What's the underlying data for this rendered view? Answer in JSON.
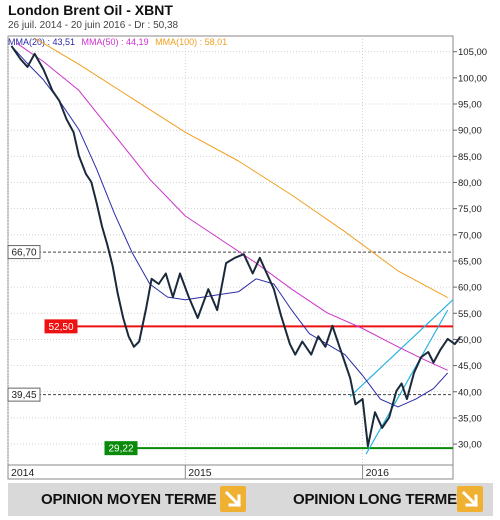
{
  "header": {
    "title": "London Brent Oil - XBNT",
    "subtitle": "26 juil. 2014 - 20 juin 2016 - Dr : 50,38"
  },
  "legend": [
    {
      "label": "MMA(20) : 43,51",
      "color": "#2b2ba8"
    },
    {
      "label": "MMA(50) : 44,19",
      "color": "#cc33cc"
    },
    {
      "label": "MMA(100) : 58,01",
      "color": "#f0a020"
    }
  ],
  "footer": {
    "medium_term": "OPINION MOYEN TERME",
    "long_term": "OPINION LONG TERME",
    "arrow_color": "#f0b133"
  },
  "chart_data": {
    "type": "line",
    "title": "London Brent Oil - XBNT",
    "x_range": [
      2014.0,
      2016.51
    ],
    "ylim": [
      26,
      108
    ],
    "yticks": [
      30,
      35,
      40,
      45,
      50,
      55,
      60,
      65,
      70,
      75,
      80,
      85,
      90,
      95,
      100,
      105
    ],
    "ytick_labels": [
      "30,00",
      "35,00",
      "40,00",
      "45,00",
      "50,00",
      "55,00",
      "60,00",
      "65,00",
      "70,00",
      "75,00",
      "80,00",
      "85,00",
      "90,00",
      "95,00",
      "100,00",
      "105,00"
    ],
    "xticks": [
      {
        "x": 2014.0,
        "label": "2014"
      },
      {
        "x": 2015.0,
        "label": "2015"
      },
      {
        "x": 2016.0,
        "label": "2016"
      }
    ],
    "grid": "dotted",
    "series": [
      {
        "name": "",
        "color": "#1b2a3a",
        "points": [
          [
            2014.02,
            106.1
          ],
          [
            2014.07,
            103.6
          ],
          [
            2014.11,
            102.1
          ],
          [
            2014.15,
            104.6
          ],
          [
            2014.2,
            101.6
          ],
          [
            2014.25,
            97.6
          ],
          [
            2014.29,
            95.6
          ],
          [
            2014.33,
            92.1
          ],
          [
            2014.37,
            89.6
          ],
          [
            2014.4,
            85.1
          ],
          [
            2014.44,
            81.6
          ],
          [
            2014.47,
            80.1
          ],
          [
            2014.5,
            76.1
          ],
          [
            2014.53,
            71.6
          ],
          [
            2014.56,
            68.1
          ],
          [
            2014.59,
            64.1
          ],
          [
            2014.62,
            58.6
          ],
          [
            2014.65,
            54.1
          ],
          [
            2014.68,
            50.6
          ],
          [
            2014.71,
            48.6
          ],
          [
            2014.74,
            49.6
          ],
          [
            2014.78,
            56.1
          ],
          [
            2014.81,
            61.6
          ],
          [
            2014.85,
            60.6
          ],
          [
            2014.89,
            62.6
          ],
          [
            2014.93,
            58.1
          ],
          [
            2014.97,
            62.6
          ],
          [
            2015.02,
            58.1
          ],
          [
            2015.07,
            54.1
          ],
          [
            2015.13,
            59.6
          ],
          [
            2015.18,
            55.6
          ],
          [
            2015.23,
            64.6
          ],
          [
            2015.28,
            65.6
          ],
          [
            2015.33,
            66.3
          ],
          [
            2015.38,
            62.6
          ],
          [
            2015.42,
            65.6
          ],
          [
            2015.46,
            62.6
          ],
          [
            2015.5,
            59.6
          ],
          [
            2015.54,
            54.6
          ],
          [
            2015.59,
            49.1
          ],
          [
            2015.62,
            47.1
          ],
          [
            2015.66,
            49.6
          ],
          [
            2015.71,
            47.1
          ],
          [
            2015.75,
            50.6
          ],
          [
            2015.79,
            48.6
          ],
          [
            2015.83,
            52.6
          ],
          [
            2015.87,
            48.6
          ],
          [
            2015.9,
            45.6
          ],
          [
            2015.93,
            42.6
          ],
          [
            2015.96,
            37.6
          ],
          [
            2016.0,
            38.6
          ],
          [
            2016.03,
            29.6
          ],
          [
            2016.07,
            36.1
          ],
          [
            2016.11,
            33.1
          ],
          [
            2016.15,
            35.1
          ],
          [
            2016.19,
            40.1
          ],
          [
            2016.22,
            41.6
          ],
          [
            2016.25,
            38.6
          ],
          [
            2016.29,
            43.6
          ],
          [
            2016.33,
            46.6
          ],
          [
            2016.37,
            47.6
          ],
          [
            2016.4,
            45.6
          ],
          [
            2016.44,
            48.1
          ],
          [
            2016.48,
            50.1
          ],
          [
            2016.52,
            49.1
          ],
          [
            2016.55,
            50.4
          ]
        ]
      },
      {
        "name": "MMA(20)",
        "color": "#2b2ba8",
        "points": [
          [
            2014.02,
            106.1
          ],
          [
            2014.1,
            103.1
          ],
          [
            2014.2,
            99.6
          ],
          [
            2014.3,
            95.1
          ],
          [
            2014.4,
            90.1
          ],
          [
            2014.5,
            82.6
          ],
          [
            2014.6,
            74.1
          ],
          [
            2014.7,
            66.6
          ],
          [
            2014.8,
            60.6
          ],
          [
            2014.9,
            58.1
          ],
          [
            2015.0,
            57.6
          ],
          [
            2015.1,
            58.1
          ],
          [
            2015.2,
            58.6
          ],
          [
            2015.3,
            59.1
          ],
          [
            2015.4,
            61.6
          ],
          [
            2015.5,
            60.6
          ],
          [
            2015.6,
            55.6
          ],
          [
            2015.7,
            51.1
          ],
          [
            2015.8,
            49.1
          ],
          [
            2015.9,
            47.1
          ],
          [
            2016.0,
            43.1
          ],
          [
            2016.1,
            38.6
          ],
          [
            2016.2,
            37.1
          ],
          [
            2016.3,
            38.6
          ],
          [
            2016.4,
            40.6
          ],
          [
            2016.48,
            43.6
          ]
        ]
      },
      {
        "name": "MMA(50)",
        "color": "#cc33cc",
        "points": [
          [
            2014.05,
            106.6
          ],
          [
            2014.2,
            103.1
          ],
          [
            2014.4,
            97.6
          ],
          [
            2014.6,
            89.1
          ],
          [
            2014.8,
            80.6
          ],
          [
            2015.0,
            73.6
          ],
          [
            2015.2,
            69.1
          ],
          [
            2015.4,
            64.6
          ],
          [
            2015.6,
            59.6
          ],
          [
            2015.8,
            55.1
          ],
          [
            2016.0,
            52.1
          ],
          [
            2016.2,
            48.6
          ],
          [
            2016.35,
            46.1
          ],
          [
            2016.48,
            44.1
          ]
        ]
      },
      {
        "name": "MMA(100)",
        "color": "#f0a020",
        "points": [
          [
            2014.15,
            107.6
          ],
          [
            2014.4,
            102.6
          ],
          [
            2014.7,
            96.1
          ],
          [
            2015.0,
            89.6
          ],
          [
            2015.3,
            84.1
          ],
          [
            2015.6,
            77.6
          ],
          [
            2015.9,
            70.6
          ],
          [
            2016.2,
            63.1
          ],
          [
            2016.48,
            58.0
          ]
        ]
      }
    ],
    "trendlines": [
      {
        "color": "#2ab3e0",
        "from": [
          2015.93,
          39.1
        ],
        "to": [
          2016.51,
          57.6
        ]
      },
      {
        "color": "#2ab3e0",
        "from": [
          2016.02,
          28.1
        ],
        "to": [
          2016.48,
          55.6
        ]
      }
    ],
    "levels": [
      {
        "value": 66.7,
        "label": "66,70",
        "color": "#444444",
        "style": "dashed",
        "label_bg": "#ffffff"
      },
      {
        "value": 52.5,
        "label": "52,50",
        "color": "#ee1111",
        "style": "solid",
        "label_bg": "#ee1111"
      },
      {
        "value": 39.45,
        "label": "39,45",
        "color": "#444444",
        "style": "dashed",
        "label_bg": "#ffffff"
      },
      {
        "value": 29.22,
        "label": "29,22",
        "color": "#0a8a0a",
        "style": "solid",
        "label_bg": "#0a8a0a"
      }
    ]
  }
}
